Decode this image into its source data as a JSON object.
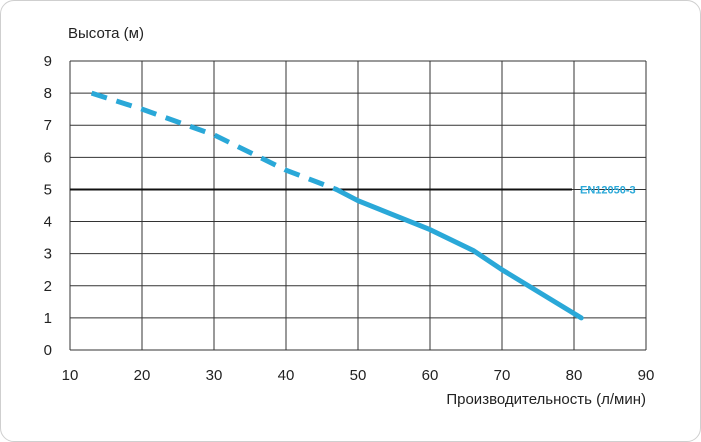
{
  "chart_data": {
    "type": "line",
    "ylabel": "Высота (м)",
    "xlabel": "Производительность (л/мин)",
    "xlim": [
      10,
      90
    ],
    "ylim": [
      0,
      9
    ],
    "xticks": [
      "10",
      "20",
      "30",
      "40",
      "50",
      "60",
      "70",
      "80",
      "90"
    ],
    "yticks": [
      "0",
      "1",
      "2",
      "3",
      "4",
      "5",
      "6",
      "7",
      "8",
      "9"
    ],
    "grid": true,
    "reference_line": {
      "y": 5,
      "label": "EN12050-3",
      "color": "#111111"
    },
    "series": [
      {
        "color": "#2aa8d8",
        "style": "dashed",
        "points": [
          [
            13,
            8.0
          ],
          [
            20,
            7.5
          ],
          [
            30,
            6.7
          ],
          [
            40,
            5.6
          ],
          [
            47,
            5.0
          ]
        ]
      },
      {
        "color": "#2aa8d8",
        "style": "solid",
        "points": [
          [
            47,
            5.0
          ],
          [
            50,
            4.65
          ],
          [
            60,
            3.75
          ],
          [
            66,
            3.1
          ],
          [
            70,
            2.5
          ],
          [
            81,
            1.0
          ]
        ]
      }
    ]
  }
}
